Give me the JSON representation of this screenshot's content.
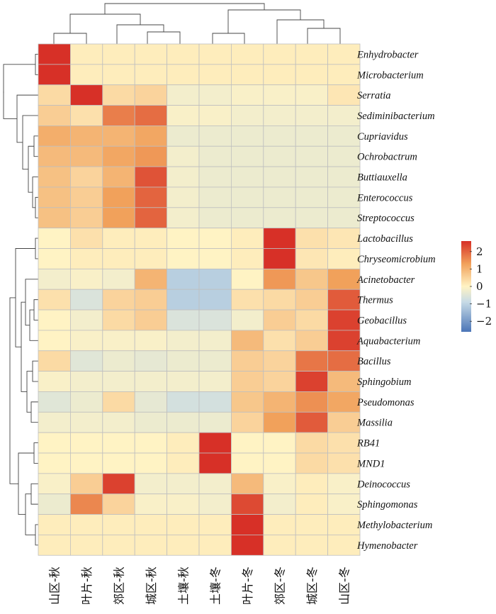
{
  "chart_data": {
    "type": "heatmap",
    "columns": [
      "山区-秋",
      "叶片-秋",
      "郊区-秋",
      "城区-秋",
      "土壤-秋",
      "土壤-冬",
      "叶片-冬",
      "郊区-冬",
      "城区-冬",
      "山区-冬"
    ],
    "rows": [
      "Enhydrobacter",
      "Microbacterium",
      "Serratia",
      "Sediminibacterium",
      "Cupriavidus",
      "Ochrobactrum",
      "Buttiauxella",
      "Enterococcus",
      "Streptococcus",
      "Lactobacillus",
      "Chryseomicrobium",
      "Acinetobacter",
      "Thermus",
      "Geobacillus",
      "Aquabacterium",
      "Bacillus",
      "Sphingobium",
      "Pseudomonas",
      "Massilia",
      "RB41",
      "MND1",
      "Deinococcus",
      "Sphingomonas",
      "Methylobacterium",
      "Hymenobacter"
    ],
    "values": [
      [
        2.8,
        0.1,
        0.1,
        0.1,
        0.1,
        0.1,
        0.1,
        0.1,
        0.1,
        0.1
      ],
      [
        2.8,
        0.1,
        0.1,
        0.1,
        0.1,
        0.1,
        0.1,
        0.1,
        0.1,
        0.1
      ],
      [
        0.4,
        2.8,
        0.4,
        0.5,
        -0.2,
        -0.2,
        -0.1,
        -0.1,
        -0.1,
        0.2
      ],
      [
        0.6,
        0.3,
        1.7,
        1.9,
        -0.1,
        -0.1,
        -0.2,
        -0.2,
        -0.2,
        -0.2
      ],
      [
        1.1,
        1.0,
        1.0,
        1.2,
        -0.3,
        -0.3,
        -0.3,
        -0.3,
        -0.3,
        -0.3
      ],
      [
        0.9,
        0.9,
        1.2,
        1.4,
        -0.2,
        -0.3,
        -0.3,
        -0.3,
        -0.3,
        -0.3
      ],
      [
        0.8,
        0.5,
        1.0,
        2.2,
        -0.2,
        -0.3,
        -0.3,
        -0.3,
        -0.3,
        -0.3
      ],
      [
        0.8,
        0.6,
        1.3,
        2.0,
        -0.2,
        -0.3,
        -0.3,
        -0.3,
        -0.3,
        -0.3
      ],
      [
        0.8,
        0.6,
        1.3,
        2.0,
        -0.2,
        -0.3,
        -0.3,
        -0.3,
        -0.3,
        -0.3
      ],
      [
        0.0,
        0.3,
        0.1,
        0.1,
        0.0,
        0.0,
        0.1,
        2.8,
        0.3,
        0.2
      ],
      [
        0.0,
        0.1,
        0.1,
        0.1,
        0.0,
        0.0,
        0.1,
        2.8,
        0.2,
        0.1
      ],
      [
        -0.2,
        -0.1,
        -0.2,
        1.0,
        -1.1,
        -1.1,
        0.0,
        1.4,
        0.7,
        1.3
      ],
      [
        0.3,
        -0.6,
        0.5,
        0.6,
        -1.1,
        -1.1,
        0.3,
        0.4,
        0.6,
        2.1
      ],
      [
        0.0,
        -0.2,
        0.4,
        0.6,
        -0.6,
        -0.6,
        -0.2,
        0.6,
        0.4,
        2.4
      ],
      [
        0.0,
        -0.1,
        -0.1,
        -0.1,
        -0.2,
        -0.2,
        0.9,
        0.3,
        0.6,
        2.4
      ],
      [
        0.4,
        -0.5,
        -0.3,
        -0.4,
        -0.3,
        -0.3,
        0.6,
        0.5,
        1.8,
        1.9
      ],
      [
        -0.1,
        -0.2,
        -0.2,
        -0.2,
        -0.2,
        -0.2,
        0.6,
        0.5,
        2.4,
        0.9
      ],
      [
        -0.5,
        -0.3,
        0.4,
        -0.4,
        -0.7,
        -0.7,
        0.7,
        1.0,
        1.5,
        1.2
      ],
      [
        -0.2,
        -0.2,
        -0.2,
        -0.3,
        -0.3,
        -0.3,
        0.5,
        1.3,
        2.1,
        0.6
      ],
      [
        0.0,
        0.0,
        0.0,
        0.0,
        0.1,
        2.8,
        0.0,
        0.0,
        0.4,
        0.3
      ],
      [
        0.0,
        0.0,
        0.0,
        0.0,
        0.1,
        2.8,
        0.0,
        0.0,
        0.4,
        0.3
      ],
      [
        -0.1,
        0.6,
        2.4,
        -0.2,
        -0.2,
        -0.2,
        0.9,
        -0.1,
        0.1,
        -0.1
      ],
      [
        -0.3,
        1.6,
        0.5,
        -0.1,
        -0.1,
        -0.2,
        2.3,
        -0.2,
        0.1,
        -0.1
      ],
      [
        0.1,
        0.1,
        0.1,
        0.1,
        0.1,
        0.1,
        2.8,
        0.1,
        0.1,
        0.1
      ],
      [
        0.1,
        0.1,
        0.1,
        0.1,
        0.1,
        0.1,
        2.8,
        0.1,
        0.1,
        0.1
      ]
    ],
    "legend": {
      "ticks": [
        2,
        1,
        0,
        -1,
        -2
      ],
      "tick_labels": [
        "2",
        "1",
        "0",
        "−1",
        "−2"
      ],
      "range": [
        -2.6,
        2.6
      ]
    },
    "colors": {
      "high": "#d73027",
      "mid_high": "#f1a15b",
      "mid": "#fff3c4",
      "low": "#4b75b7",
      "grid": "#bfbfbf"
    },
    "row_dendrogram": true,
    "column_dendrogram": true,
    "legend_position": "right"
  }
}
